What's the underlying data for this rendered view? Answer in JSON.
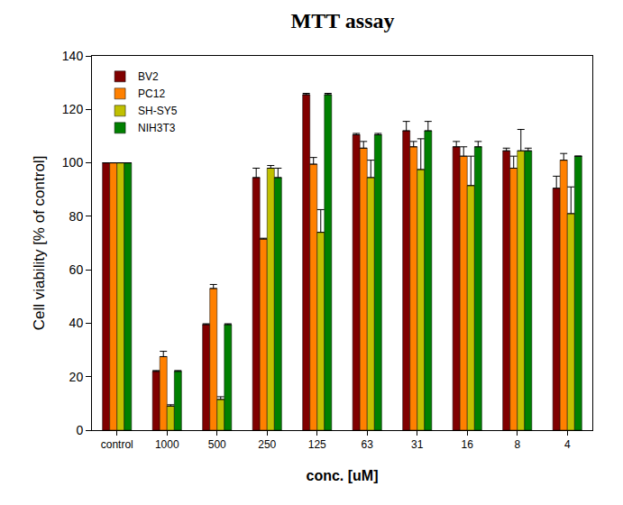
{
  "chart_data": {
    "type": "bar",
    "title": "MTT assay",
    "x_label": "conc. [uM]",
    "y_label": "Cell viability [% of control]",
    "categories": [
      "control",
      "1000",
      "500",
      "250",
      "125",
      "63",
      "31",
      "16",
      "8",
      "4"
    ],
    "series": [
      {
        "name": "BV2",
        "color": "#800000",
        "values": [
          100,
          22,
          39.5,
          94.5,
          125.5,
          110.5,
          112,
          106,
          104.5,
          90.5
        ],
        "errors": [
          0,
          0.3,
          0.3,
          3.5,
          0.5,
          0.5,
          3.5,
          2,
          1,
          4.5
        ]
      },
      {
        "name": "PC12",
        "color": "#ff8000",
        "values": [
          100,
          27.5,
          53,
          71.5,
          99.5,
          105.5,
          106,
          102.5,
          98,
          101
        ],
        "errors": [
          0,
          2,
          1.5,
          0.3,
          2.5,
          2.5,
          2,
          3.5,
          4.5,
          2.5
        ]
      },
      {
        "name": "SH-SY5",
        "color": "#c0c000",
        "values": [
          100,
          9,
          11.5,
          98,
          74,
          94.5,
          97.5,
          91.5,
          104.5,
          81
        ],
        "errors": [
          0,
          0.5,
          1,
          1,
          8.5,
          6.5,
          11.5,
          11,
          8,
          10
        ]
      },
      {
        "name": "NIH3T3",
        "color": "#008000",
        "values": [
          100,
          22,
          39.5,
          94.5,
          125.5,
          110.5,
          112,
          106,
          104.5,
          102.5
        ],
        "errors": [
          0,
          0.3,
          0.3,
          3.5,
          0.5,
          0.5,
          3.5,
          2,
          1,
          0
        ]
      }
    ],
    "ylim": [
      0,
      140
    ],
    "yticks": [
      0,
      20,
      40,
      60,
      80,
      100,
      120,
      140
    ],
    "grid": false,
    "legend": "upper left"
  }
}
